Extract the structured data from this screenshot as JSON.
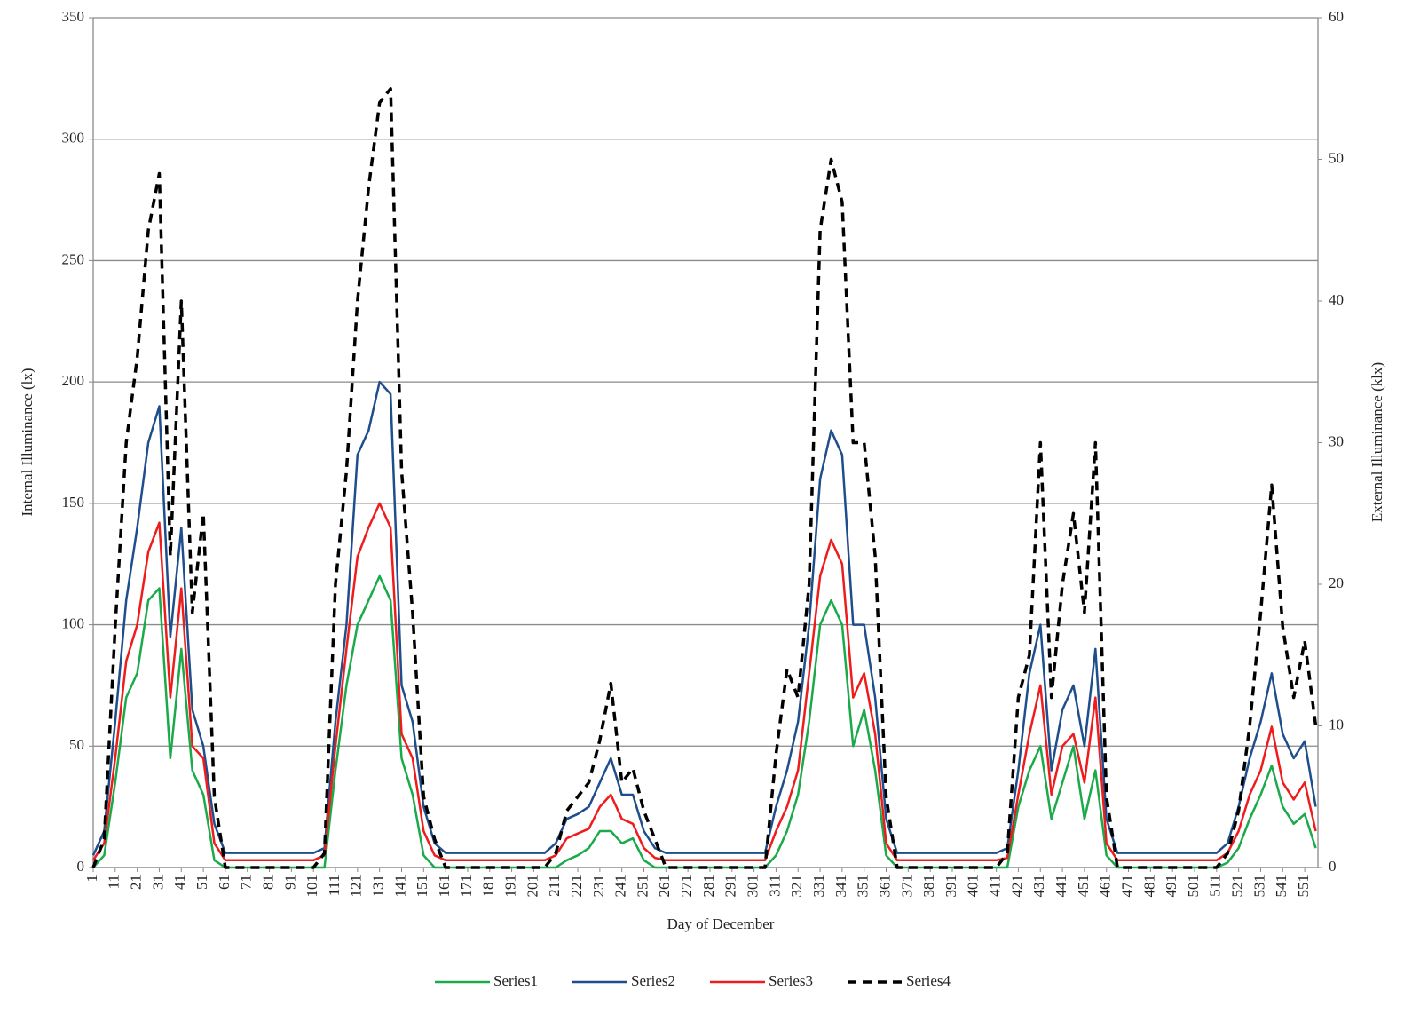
{
  "chart_data": {
    "type": "line",
    "xlabel": "Day of December",
    "ylabel": "Internal Illuminance (lx)",
    "y2label": "External Illuminance (klx)",
    "x": [
      1,
      6,
      11,
      16,
      21,
      26,
      31,
      36,
      41,
      46,
      51,
      56,
      61,
      66,
      71,
      76,
      81,
      86,
      91,
      96,
      101,
      106,
      111,
      116,
      121,
      126,
      131,
      136,
      141,
      146,
      151,
      156,
      161,
      166,
      171,
      176,
      181,
      186,
      191,
      196,
      201,
      206,
      211,
      216,
      221,
      226,
      231,
      236,
      241,
      246,
      251,
      256,
      261,
      266,
      271,
      276,
      281,
      286,
      291,
      296,
      301,
      306,
      311,
      316,
      321,
      326,
      331,
      336,
      341,
      346,
      351,
      356,
      361,
      366,
      371,
      376,
      381,
      386,
      391,
      396,
      401,
      406,
      411,
      416,
      421,
      426,
      431,
      436,
      441,
      446,
      451,
      456,
      461,
      466,
      471,
      476,
      481,
      486,
      491,
      496,
      501,
      506,
      511,
      516,
      521,
      526,
      531,
      536,
      541,
      546,
      551,
      556
    ],
    "xlim": [
      1,
      557
    ],
    "xticks": [
      1,
      11,
      21,
      31,
      41,
      51,
      61,
      71,
      81,
      91,
      101,
      111,
      121,
      131,
      141,
      151,
      161,
      171,
      181,
      191,
      201,
      211,
      221,
      231,
      241,
      251,
      261,
      271,
      281,
      291,
      301,
      311,
      321,
      331,
      341,
      351,
      361,
      371,
      381,
      391,
      401,
      411,
      421,
      431,
      441,
      451,
      461,
      471,
      481,
      491,
      501,
      511,
      521,
      531,
      541,
      551
    ],
    "ylim": [
      0,
      350
    ],
    "yticks": [
      0,
      50,
      100,
      150,
      200,
      250,
      300,
      350
    ],
    "y2lim": [
      0,
      60
    ],
    "y2ticks": [
      0,
      10,
      20,
      30,
      40,
      50,
      60
    ],
    "grid": true,
    "legend": "bottom",
    "series": [
      {
        "name": "Series1",
        "color": "#1aaa4a",
        "values": [
          0,
          5,
          35,
          70,
          80,
          110,
          115,
          45,
          90,
          40,
          30,
          3,
          0,
          0,
          0,
          0,
          0,
          0,
          0,
          0,
          0,
          0,
          40,
          75,
          100,
          110,
          120,
          110,
          45,
          30,
          5,
          0,
          0,
          0,
          0,
          0,
          0,
          0,
          0,
          0,
          0,
          0,
          0,
          3,
          5,
          8,
          15,
          15,
          10,
          12,
          3,
          0,
          0,
          0,
          0,
          0,
          0,
          0,
          0,
          0,
          0,
          0,
          5,
          15,
          30,
          60,
          100,
          110,
          100,
          50,
          65,
          40,
          5,
          0,
          0,
          0,
          0,
          0,
          0,
          0,
          0,
          0,
          0,
          0,
          25,
          40,
          50,
          20,
          35,
          50,
          20,
          40,
          5,
          0,
          0,
          0,
          0,
          0,
          0,
          0,
          0,
          0,
          0,
          2,
          8,
          20,
          30,
          42,
          25,
          18,
          22,
          8
        ]
      },
      {
        "name": "Series2",
        "color": "#1f4e8c",
        "values": [
          5,
          15,
          60,
          110,
          140,
          175,
          190,
          95,
          140,
          65,
          50,
          18,
          6,
          6,
          6,
          6,
          6,
          6,
          6,
          6,
          6,
          8,
          60,
          100,
          170,
          180,
          200,
          195,
          75,
          60,
          25,
          10,
          6,
          6,
          6,
          6,
          6,
          6,
          6,
          6,
          6,
          6,
          10,
          20,
          22,
          25,
          35,
          45,
          30,
          30,
          15,
          8,
          6,
          6,
          6,
          6,
          6,
          6,
          6,
          6,
          6,
          6,
          25,
          40,
          60,
          100,
          160,
          180,
          170,
          100,
          100,
          70,
          20,
          6,
          6,
          6,
          6,
          6,
          6,
          6,
          6,
          6,
          6,
          8,
          40,
          80,
          100,
          40,
          65,
          75,
          50,
          90,
          20,
          6,
          6,
          6,
          6,
          6,
          6,
          6,
          6,
          6,
          6,
          10,
          25,
          45,
          60,
          80,
          55,
          45,
          52,
          25
        ]
      },
      {
        "name": "Series3",
        "color": "#ee1c1c",
        "values": [
          3,
          10,
          45,
          85,
          100,
          130,
          142,
          70,
          115,
          50,
          45,
          10,
          3,
          3,
          3,
          3,
          3,
          3,
          3,
          3,
          3,
          5,
          50,
          90,
          128,
          140,
          150,
          140,
          55,
          45,
          15,
          5,
          3,
          3,
          3,
          3,
          3,
          3,
          3,
          3,
          3,
          3,
          5,
          12,
          14,
          16,
          25,
          30,
          20,
          18,
          8,
          4,
          3,
          3,
          3,
          3,
          3,
          3,
          3,
          3,
          3,
          3,
          15,
          25,
          40,
          80,
          120,
          135,
          125,
          70,
          80,
          55,
          10,
          3,
          3,
          3,
          3,
          3,
          3,
          3,
          3,
          3,
          3,
          4,
          30,
          55,
          75,
          30,
          50,
          55,
          35,
          70,
          10,
          3,
          3,
          3,
          3,
          3,
          3,
          3,
          3,
          3,
          3,
          6,
          15,
          30,
          40,
          58,
          35,
          28,
          35,
          15
        ]
      },
      {
        "name": "Series4",
        "color": "#000000",
        "dashed": true,
        "axis": "y2",
        "values": [
          0,
          2,
          17,
          30,
          36,
          45,
          49,
          22,
          40,
          18,
          25,
          5,
          0,
          0,
          0,
          0,
          0,
          0,
          0,
          0,
          0,
          1,
          20,
          28,
          40,
          48,
          54,
          55,
          28,
          18,
          5,
          2,
          0,
          0,
          0,
          0,
          0,
          0,
          0,
          0,
          0,
          0,
          1,
          4,
          5,
          6,
          9,
          13,
          6,
          7,
          4,
          2,
          0,
          0,
          0,
          0,
          0,
          0,
          0,
          0,
          0,
          0,
          8,
          14,
          12,
          20,
          45,
          50,
          47,
          30,
          30,
          22,
          5,
          0,
          0,
          0,
          0,
          0,
          0,
          0,
          0,
          0,
          0,
          1,
          12,
          15,
          30,
          12,
          20,
          25,
          18,
          30,
          5,
          0,
          0,
          0,
          0,
          0,
          0,
          0,
          0,
          0,
          0,
          1,
          4,
          10,
          18,
          27,
          17,
          12,
          16,
          10
        ]
      }
    ]
  }
}
